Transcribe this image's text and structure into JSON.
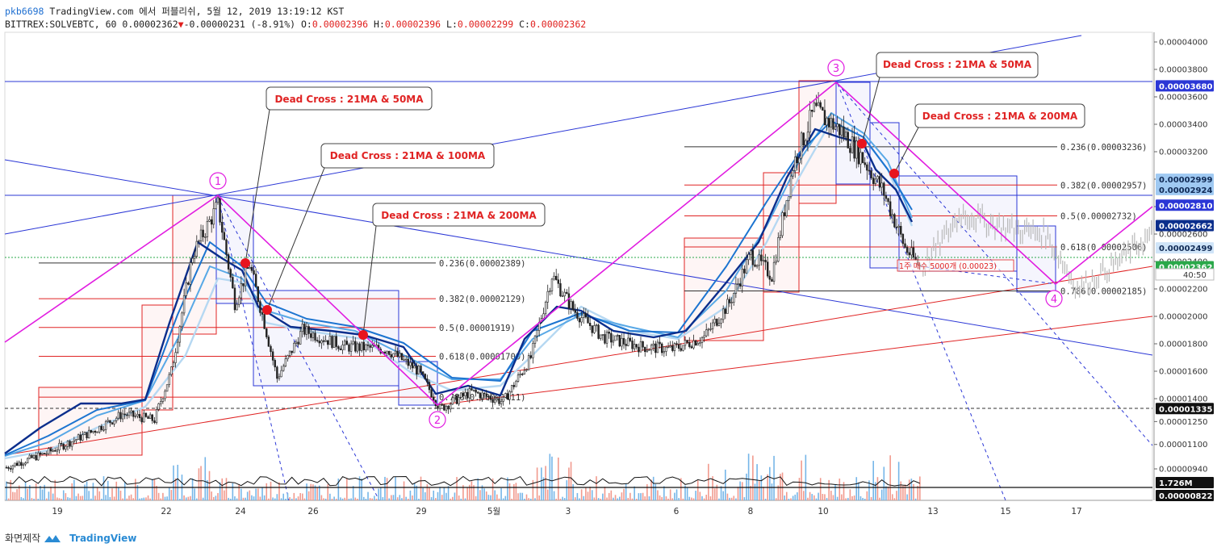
{
  "header": {
    "line1_user": "pkb6698",
    "line1_rest": " TradingView.com 에서 퍼블리쉬, 5월 12, 2019 13:19:12 KST",
    "symbol_line": "BITTREX:SOLVEBTC, 60 0.00002362",
    "change_arrow": "▼",
    "change": "-0.00000231 (-8.91%)",
    "o_label": " O:",
    "o_value": "0.00002396",
    "h_label": " H:",
    "h_value": "0.00002396",
    "l_label": " L:",
    "l_value": "0.00002299",
    "c_label": " C:",
    "c_value": "0.00002362"
  },
  "footer": {
    "caption": "화면제작",
    "brand": "TradingView"
  },
  "colors": {
    "up": "#2b2b2b",
    "down": "#2b2b2b",
    "magenta": "#e11de0",
    "blue": "#2b37d6",
    "red": "#e02424",
    "ma21": "#0b2e8c",
    "ma50": "#1c74d0",
    "ma100": "#58a8e6",
    "ma200": "#b6d8f2"
  },
  "chart_data": {
    "type": "line",
    "title": "BITTREX:SOLVEBTC, 60",
    "x_tick_labels": [
      "19",
      "22",
      "24",
      "26",
      "29",
      "5월",
      "3",
      "6",
      "8",
      "10",
      "13",
      "15",
      "17"
    ],
    "y_tick_labels": [
      "0.00004000",
      "0.00003800",
      "0.00003600",
      "0.00003400",
      "0.00003200",
      "0.00003000",
      "0.00002800",
      "0.00002600",
      "0.00002400",
      "0.00002200",
      "0.00002000",
      "0.00001800",
      "0.00001600",
      "0.00001400",
      "0.00001250",
      "0.00001100",
      "0.00000940"
    ],
    "ylim": [
      8.22e-06,
      4e-05
    ],
    "price_tags": [
      {
        "label": "0.00003680",
        "bg": "#2b37d6",
        "fg": "#ffffff"
      },
      {
        "label": "0.00002999",
        "bg": "#9fc9f2",
        "fg": "#102a55"
      },
      {
        "label": "0.00002924",
        "bg": "#9fc9f2",
        "fg": "#102a55"
      },
      {
        "label": "0.00002810",
        "bg": "#2b37d6",
        "fg": "#ffffff"
      },
      {
        "label": "0.00002662",
        "bg": "#0b2e8c",
        "fg": "#ffffff"
      },
      {
        "label": "0.00002499",
        "bg": "#cfe4f8",
        "fg": "#102a55"
      },
      {
        "label": "0.00002362",
        "bg": "#2aa84a",
        "fg": "#ffffff"
      },
      {
        "label": "0.00001335",
        "bg": "#111111",
        "fg": "#ffffff"
      },
      {
        "label": "1.726M",
        "bg": "#111111",
        "fg": "#ffffff"
      },
      {
        "label": "0.00000822",
        "bg": "#111111",
        "fg": "#ffffff"
      }
    ],
    "countdown": "40:50",
    "waves": [
      "1",
      "2",
      "3",
      "4"
    ],
    "wave_prices": [
      2.81e-05,
      1.335e-05,
      3.68e-05,
      2.185e-05
    ],
    "fib_left": [
      {
        "label": "0.236(0.00002389)",
        "value": 2.389e-05
      },
      {
        "label": "0.382(0.00002129)",
        "value": 2.129e-05
      },
      {
        "label": "0.5(0.00001919)",
        "value": 1.919e-05
      },
      {
        "label": "0.618(0.00001709)",
        "value": 1.709e-05
      },
      {
        "label": "0.786(0.00001411)",
        "value": 1.411e-05
      }
    ],
    "fib_right": [
      {
        "label": "0.236(0.00003236)",
        "value": 3.236e-05
      },
      {
        "label": "0.382(0.00002957)",
        "value": 2.957e-05
      },
      {
        "label": "0.5(0.00002732)",
        "value": 2.732e-05
      },
      {
        "label": "0.618(0.00002506)",
        "value": 2.506e-05
      },
      {
        "label": "0.786(0.00002185)",
        "value": 2.185e-05
      }
    ],
    "annotations": [
      "Dead Cross : 21MA & 50MA",
      "Dead Cross : 21MA & 100MA",
      "Dead Cross : 21MA & 200MA",
      "Dead Cross : 21MA & 50MA",
      "Dead Cross : 21MA & 200MA"
    ],
    "range_note": "1주 매수 5000개 (0.00023)",
    "price_path": [
      [
        0,
        9.5e-06
      ],
      [
        20,
        1.05e-05
      ],
      [
        40,
        1.18e-05
      ],
      [
        55,
        1.3e-05
      ],
      [
        70,
        1.26e-05
      ],
      [
        78,
        1.6e-05
      ],
      [
        88,
        2.45e-05
      ],
      [
        100,
        2.81e-05
      ],
      [
        108,
        2.1e-05
      ],
      [
        115,
        2.38e-05
      ],
      [
        122,
        1.95e-05
      ],
      [
        128,
        1.55e-05
      ],
      [
        140,
        1.9e-05
      ],
      [
        160,
        1.78e-05
      ],
      [
        180,
        1.76e-05
      ],
      [
        195,
        1.6e-05
      ],
      [
        205,
        1.335e-05
      ],
      [
        220,
        1.45e-05
      ],
      [
        235,
        1.38e-05
      ],
      [
        248,
        1.7e-05
      ],
      [
        258,
        2.3e-05
      ],
      [
        268,
        2.05e-05
      ],
      [
        282,
        1.85e-05
      ],
      [
        300,
        1.78e-05
      ],
      [
        315,
        1.76e-05
      ],
      [
        330,
        1.85e-05
      ],
      [
        342,
        2.1e-05
      ],
      [
        352,
        2.45e-05
      ],
      [
        362,
        2.3e-05
      ],
      [
        372,
        3.1e-05
      ],
      [
        382,
        3.5e-05
      ],
      [
        395,
        3.35e-05
      ],
      [
        405,
        3.15e-05
      ],
      [
        415,
        2.9e-05
      ],
      [
        425,
        2.5e-05
      ],
      [
        432,
        2.362e-05
      ]
    ],
    "projection_path": [
      [
        432,
        2.362e-05
      ],
      [
        450,
        2.75e-05
      ],
      [
        470,
        2.65e-05
      ],
      [
        490,
        2.6e-05
      ],
      [
        505,
        2.2e-05
      ],
      [
        520,
        2.35e-05
      ],
      [
        540,
        2.6e-05
      ]
    ],
    "volume_label": "1.726M"
  }
}
